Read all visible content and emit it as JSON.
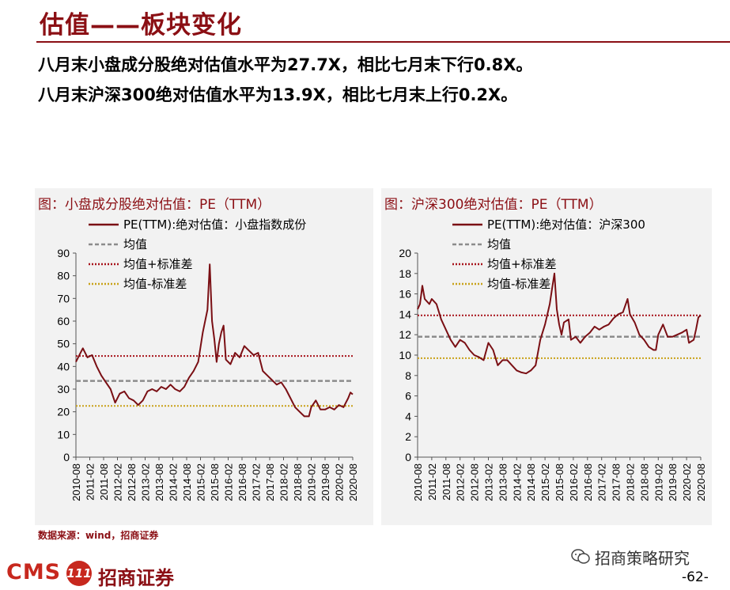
{
  "slide": {
    "title": "估值——板块变化",
    "line1": "八月末小盘成分股绝对估值水平为27.7X，相比七月末下行0.8X。",
    "line2": "八月末沪深300绝对估值水平为13.9X，相比七月末上行0.2X。",
    "source": "数据来源：wind，招商证券",
    "logo_text": "CMS",
    "logo_badge": "111",
    "logo_cn": "招商证券",
    "wechat": "招商策略研究",
    "page_number": "-62-"
  },
  "colors": {
    "accent": "#8b0f14",
    "pe_line": "#7a0f14",
    "mean": "#8c8c8c",
    "plus_std": "#a8141c",
    "minus_std": "#c9a21a",
    "panel_bg": "#f2f2f2"
  },
  "chart_data": [
    {
      "type": "line",
      "title": "图：小盘成分股绝对估值：PE（TTM）",
      "ylim": [
        0,
        90
      ],
      "yticks": [
        0,
        10,
        20,
        30,
        40,
        50,
        60,
        70,
        80,
        90
      ],
      "x_start": "2010-08",
      "x_end": "2020-08",
      "xticks": [
        "2010-08",
        "2011-02",
        "2011-08",
        "2012-02",
        "2012-08",
        "2013-02",
        "2013-08",
        "2014-02",
        "2014-08",
        "2015-02",
        "2015-08",
        "2016-02",
        "2016-08",
        "2017-02",
        "2017-08",
        "2018-02",
        "2018-08",
        "2019-02",
        "2019-08",
        "2020-02",
        "2020-08"
      ],
      "legend_placement": "top-left",
      "series": [
        {
          "name": "PE(TTM):绝对估值：小盘指数成份",
          "style": "solid",
          "points": [
            [
              "2010-08",
              42
            ],
            [
              "2010-10",
              46
            ],
            [
              "2010-11",
              48
            ],
            [
              "2011-01",
              44
            ],
            [
              "2011-03",
              45
            ],
            [
              "2011-05",
              40
            ],
            [
              "2011-07",
              36
            ],
            [
              "2011-09",
              33
            ],
            [
              "2011-11",
              30
            ],
            [
              "2012-01",
              24
            ],
            [
              "2012-03",
              28
            ],
            [
              "2012-05",
              29
            ],
            [
              "2012-07",
              26
            ],
            [
              "2012-09",
              25
            ],
            [
              "2012-11",
              23
            ],
            [
              "2013-01",
              25
            ],
            [
              "2013-03",
              29
            ],
            [
              "2013-05",
              30
            ],
            [
              "2013-07",
              29
            ],
            [
              "2013-09",
              31
            ],
            [
              "2013-11",
              30
            ],
            [
              "2014-01",
              32
            ],
            [
              "2014-03",
              30
            ],
            [
              "2014-05",
              29
            ],
            [
              "2014-07",
              31
            ],
            [
              "2014-09",
              35
            ],
            [
              "2014-11",
              38
            ],
            [
              "2015-01",
              42
            ],
            [
              "2015-03",
              55
            ],
            [
              "2015-05",
              65
            ],
            [
              "2015-06",
              85
            ],
            [
              "2015-07",
              60
            ],
            [
              "2015-08",
              52
            ],
            [
              "2015-09",
              42
            ],
            [
              "2015-10",
              50
            ],
            [
              "2015-11",
              55
            ],
            [
              "2015-12",
              58
            ],
            [
              "2016-01",
              43
            ],
            [
              "2016-03",
              41
            ],
            [
              "2016-05",
              46
            ],
            [
              "2016-07",
              44
            ],
            [
              "2016-09",
              49
            ],
            [
              "2016-11",
              47
            ],
            [
              "2017-01",
              45
            ],
            [
              "2017-03",
              46
            ],
            [
              "2017-05",
              38
            ],
            [
              "2017-07",
              36
            ],
            [
              "2017-09",
              34
            ],
            [
              "2017-11",
              32
            ],
            [
              "2018-01",
              33
            ],
            [
              "2018-03",
              30
            ],
            [
              "2018-05",
              26
            ],
            [
              "2018-07",
              22
            ],
            [
              "2018-09",
              20
            ],
            [
              "2018-11",
              18
            ],
            [
              "2019-01",
              18
            ],
            [
              "2019-02",
              22
            ],
            [
              "2019-04",
              25
            ],
            [
              "2019-06",
              21
            ],
            [
              "2019-08",
              21
            ],
            [
              "2019-10",
              22
            ],
            [
              "2019-12",
              21
            ],
            [
              "2020-02",
              23
            ],
            [
              "2020-04",
              22
            ],
            [
              "2020-06",
              26
            ],
            [
              "2020-07",
              28.5
            ],
            [
              "2020-08",
              27.7
            ]
          ]
        },
        {
          "name": "均值",
          "style": "dashed",
          "value": 33.6
        },
        {
          "name": "均值+标准差",
          "style": "dotted",
          "value": 44.6
        },
        {
          "name": "均值-标准差",
          "style": "dotted",
          "value": 22.6
        }
      ]
    },
    {
      "type": "line",
      "title": "图：沪深300绝对估值：PE（TTM）",
      "ylim": [
        0,
        20
      ],
      "yticks": [
        0,
        2,
        4,
        6,
        8,
        10,
        12,
        14,
        16,
        18,
        20
      ],
      "x_start": "2010-08",
      "x_end": "2020-08",
      "xticks": [
        "2010-08",
        "2011-02",
        "2011-08",
        "2012-02",
        "2012-08",
        "2013-02",
        "2013-08",
        "2014-02",
        "2014-08",
        "2015-02",
        "2015-08",
        "2016-02",
        "2016-08",
        "2017-02",
        "2017-08",
        "2018-02",
        "2018-08",
        "2019-02",
        "2019-08",
        "2020-02",
        "2020-08"
      ],
      "legend_placement": "top-left",
      "series": [
        {
          "name": "PE(TTM):绝对估值：沪深300",
          "style": "solid",
          "points": [
            [
              "2010-08",
              14.5
            ],
            [
              "2010-09",
              15
            ],
            [
              "2010-10",
              16.8
            ],
            [
              "2010-11",
              15.5
            ],
            [
              "2011-01",
              15
            ],
            [
              "2011-02",
              15.5
            ],
            [
              "2011-04",
              15
            ],
            [
              "2011-06",
              13.5
            ],
            [
              "2011-08",
              12.5
            ],
            [
              "2011-10",
              11.5
            ],
            [
              "2011-12",
              10.8
            ],
            [
              "2012-02",
              11.5
            ],
            [
              "2012-04",
              11.2
            ],
            [
              "2012-06",
              10.5
            ],
            [
              "2012-08",
              10
            ],
            [
              "2012-10",
              9.8
            ],
            [
              "2012-12",
              9.5
            ],
            [
              "2013-02",
              11.2
            ],
            [
              "2013-04",
              10.5
            ],
            [
              "2013-06",
              9
            ],
            [
              "2013-08",
              9.5
            ],
            [
              "2013-10",
              9.5
            ],
            [
              "2013-12",
              9
            ],
            [
              "2014-02",
              8.5
            ],
            [
              "2014-04",
              8.3
            ],
            [
              "2014-06",
              8.2
            ],
            [
              "2014-08",
              8.5
            ],
            [
              "2014-10",
              9
            ],
            [
              "2014-12",
              11.5
            ],
            [
              "2015-02",
              13
            ],
            [
              "2015-04",
              15
            ],
            [
              "2015-05",
              16.5
            ],
            [
              "2015-06",
              18
            ],
            [
              "2015-07",
              14.5
            ],
            [
              "2015-08",
              13
            ],
            [
              "2015-09",
              12
            ],
            [
              "2015-10",
              13.2
            ],
            [
              "2015-12",
              13.5
            ],
            [
              "2016-01",
              11.5
            ],
            [
              "2016-03",
              11.8
            ],
            [
              "2016-05",
              11.2
            ],
            [
              "2016-07",
              11.8
            ],
            [
              "2016-09",
              12.2
            ],
            [
              "2016-11",
              12.8
            ],
            [
              "2017-01",
              12.5
            ],
            [
              "2017-03",
              12.8
            ],
            [
              "2017-05",
              13
            ],
            [
              "2017-07",
              13.6
            ],
            [
              "2017-09",
              14
            ],
            [
              "2017-11",
              14.2
            ],
            [
              "2018-01",
              15.5
            ],
            [
              "2018-02",
              14
            ],
            [
              "2018-04",
              13.2
            ],
            [
              "2018-06",
              12
            ],
            [
              "2018-08",
              11.5
            ],
            [
              "2018-10",
              10.8
            ],
            [
              "2018-12",
              10.5
            ],
            [
              "2019-01",
              10.5
            ],
            [
              "2019-02",
              12
            ],
            [
              "2019-04",
              13
            ],
            [
              "2019-06",
              11.8
            ],
            [
              "2019-08",
              11.8
            ],
            [
              "2019-10",
              12
            ],
            [
              "2019-12",
              12.2
            ],
            [
              "2020-02",
              12.5
            ],
            [
              "2020-03",
              11.2
            ],
            [
              "2020-05",
              11.5
            ],
            [
              "2020-06",
              12.5
            ],
            [
              "2020-07",
              13.7
            ],
            [
              "2020-08",
              13.9
            ]
          ]
        },
        {
          "name": "均值",
          "style": "dashed",
          "value": 11.8
        },
        {
          "name": "均值+标准差",
          "style": "dotted",
          "value": 13.9
        },
        {
          "name": "均值-标准差",
          "style": "dotted",
          "value": 9.7
        }
      ]
    }
  ]
}
